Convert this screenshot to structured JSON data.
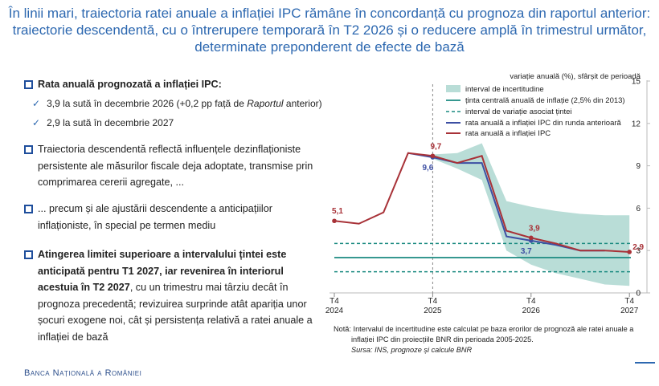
{
  "header": {
    "title_lines": [
      "În linii mari, traiectoria ratei anuale a inflației IPC rămâne în concordanță cu prognoza din raportul anterior:",
      "traiectorie descendentă, cu o întrerupere temporară în T2 2026 și o reducere amplă în trimestrul următor,",
      "determinate preponderent de efecte de bază"
    ]
  },
  "bullets": [
    {
      "bold": "Rata anuală prognozată a inflației IPC:",
      "items": [
        [
          "3,9 la sută în decembrie 2026 (+0,2 pp față de ",
          "Raportul",
          " anterior)"
        ],
        [
          "2,9 la sută în decembrie 2027"
        ]
      ]
    },
    {
      "text": "Traiectoria descendentă reflectă influențele dezinflaționiste persistente ale măsurilor fiscale deja adoptate, transmise prin comprimarea cererii agregate, ..."
    },
    {
      "text": "... precum și ale ajustării descendente a anticipațiilor inflaționiste, în special pe termen mediu"
    },
    {
      "bold": "Atingerea limitei superioare a intervalului țintei este anticipată pentru T1 2027, iar revenirea în interiorul acestuia în T2 2027",
      "text": ", cu un trimestru mai târziu decât în prognoza precedentă; revizuirea surprinde atât apariția unor șocuri exogene noi, cât și persistența relativă a ratei anuale a inflației de bază"
    }
  ],
  "chart_data": {
    "type": "line",
    "y_axis_label": "variație anuală (%), sfârșit de perioadă",
    "categories": [
      "T4 2024",
      null,
      null,
      null,
      "T4 2025",
      null,
      null,
      null,
      "T4 2026",
      null,
      null,
      null,
      "T4 2027"
    ],
    "ylim": [
      0,
      15
    ],
    "yticks": [
      0,
      3,
      6,
      9,
      12,
      15
    ],
    "band": {
      "name": "interval de incertitudine",
      "color": "#b9ddd7",
      "upper": [
        null,
        null,
        null,
        null,
        9.8,
        9.9,
        10.6,
        6.5,
        6.1,
        5.8,
        5.6,
        5.5,
        5.5
      ],
      "lower": [
        null,
        null,
        null,
        null,
        9.5,
        8.8,
        8.0,
        3.0,
        2.0,
        1.4,
        1.0,
        0.6,
        0.5
      ]
    },
    "target": {
      "name": "ținta centrală anuală de inflație (2,5% din 2013)",
      "color": "#1a8a80",
      "value": 2.5
    },
    "target_range": {
      "name": "interval de variație asociat țintei",
      "color": "#1a8a80",
      "values": [
        1.5,
        3.5
      ]
    },
    "series": [
      {
        "name": "rata anuală a inflației IPC din runda anterioară",
        "color": "#3d4fa3",
        "values": [
          null,
          null,
          null,
          9.9,
          9.6,
          9.2,
          9.2,
          4.0,
          3.7,
          3.4,
          3.0,
          3.0,
          null
        ],
        "value_labels": [
          null,
          null,
          null,
          null,
          "9,6",
          null,
          null,
          null,
          "3,7",
          null,
          null,
          null,
          null
        ]
      },
      {
        "name": "rata anuală a inflației IPC",
        "color": "#a83238",
        "values": [
          5.1,
          4.9,
          5.7,
          9.9,
          9.7,
          9.2,
          9.7,
          4.4,
          3.9,
          3.5,
          3.0,
          3.0,
          2.9
        ],
        "value_labels": [
          "5,1",
          null,
          null,
          null,
          "9,7",
          null,
          null,
          null,
          "3,9",
          null,
          null,
          null,
          "2,9"
        ]
      }
    ],
    "note": "Notă: Intervalul de incertitudine este calculat pe baza erorilor de prognoză ale ratei anuale a inflației IPC din proiecțiile BNR din perioada 2005-2025.",
    "source": "Sursa: INS, prognoze și calcule BNR"
  },
  "footer": {
    "logo": "Banca Națională a României"
  }
}
